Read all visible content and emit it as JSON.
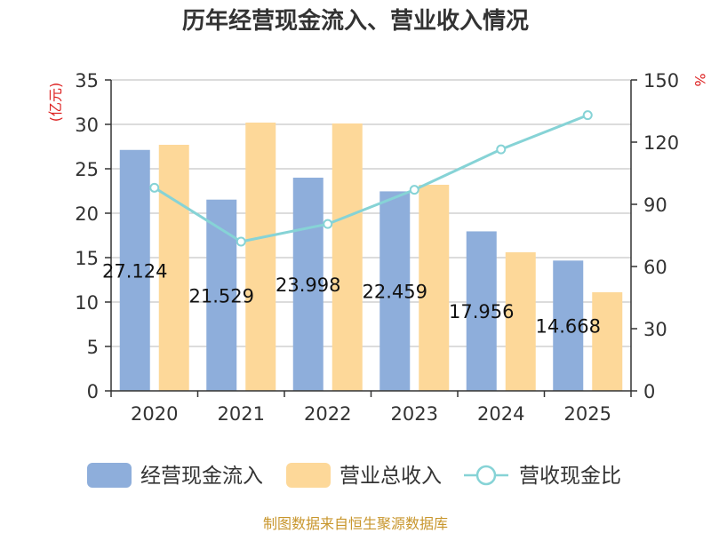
{
  "chart_data": {
    "type": "bar",
    "title": "历年经营现金流入、营业收入情况",
    "categories": [
      "2020",
      "2021",
      "2022",
      "2023",
      "2024",
      "2025"
    ],
    "series": [
      {
        "name": "经营现金流入",
        "type": "bar",
        "axis": "left",
        "color": "#8eaedb",
        "values": [
          27.124,
          21.529,
          23.998,
          22.459,
          17.956,
          14.668
        ],
        "labels": [
          "27.124",
          "21.529",
          "23.998",
          "22.459",
          "17.956",
          "14.668"
        ]
      },
      {
        "name": "营业总收入",
        "type": "bar",
        "axis": "left",
        "color": "#fdd899",
        "values": [
          27.7,
          30.2,
          30.1,
          23.2,
          15.6,
          11.1
        ]
      },
      {
        "name": "营收现金比",
        "type": "line",
        "axis": "right",
        "color": "#86d3d6",
        "values": [
          98,
          72,
          80.5,
          97,
          116.5,
          133
        ]
      }
    ],
    "y_left": {
      "label": "(亿元)",
      "min": 0,
      "max": 35,
      "ticks": [
        0,
        5,
        10,
        15,
        20,
        25,
        30,
        35
      ],
      "label_color": "#dd2222"
    },
    "y_right": {
      "label": "%",
      "min": 0,
      "max": 150,
      "ticks": [
        0,
        30,
        60,
        90,
        120,
        150
      ],
      "label_color": "#dd2222"
    },
    "grid": true,
    "legend_position": "bottom",
    "source": "制图数据来自恒生聚源数据库",
    "source_color": "#c8962d"
  }
}
